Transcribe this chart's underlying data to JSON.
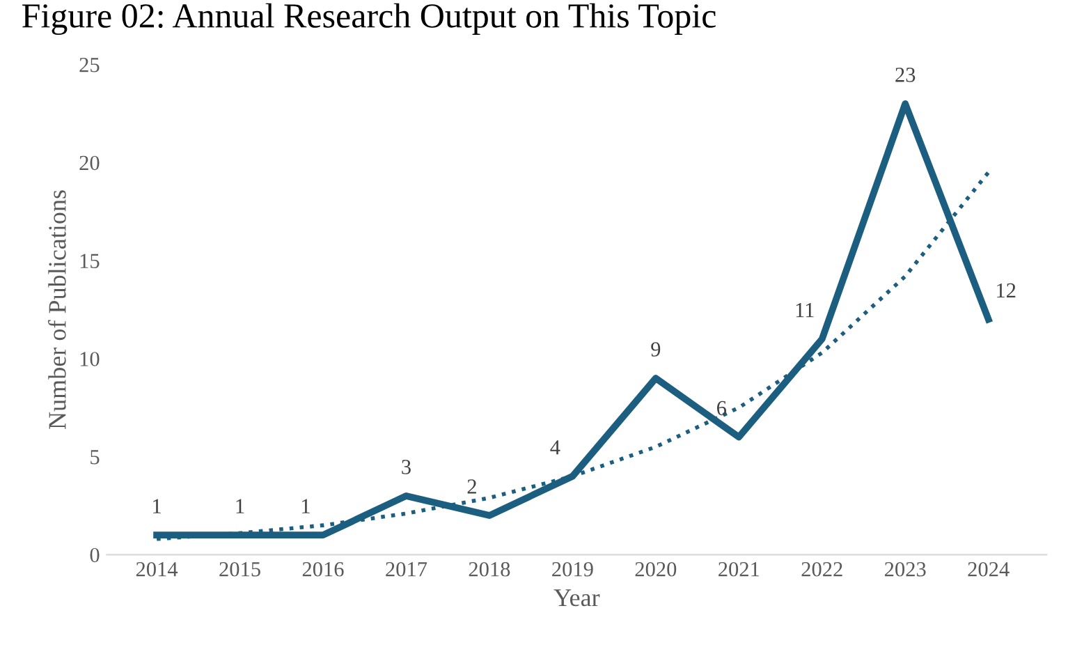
{
  "chart_data": {
    "type": "line",
    "title": "Figure 02: Annual Research Output on This Topic",
    "xlabel": "Year",
    "ylabel": "Number of Publications",
    "categories": [
      "2014",
      "2015",
      "2016",
      "2017",
      "2018",
      "2019",
      "2020",
      "2021",
      "2022",
      "2023",
      "2024"
    ],
    "series": [
      {
        "color": "#1b5e80",
        "values": [
          1,
          1,
          1,
          3,
          2,
          4,
          9,
          6,
          11,
          23,
          12
        ],
        "value_labels": [
          "1",
          "1",
          "1",
          "3",
          "2",
          "4",
          "9",
          "6",
          "11",
          "23",
          "12"
        ],
        "line_style": "solid"
      },
      {
        "color": "#1b5e80",
        "values": [
          0.8,
          1.1,
          1.5,
          2.1,
          2.9,
          4.0,
          5.5,
          7.5,
          10.3,
          14.2,
          19.5
        ],
        "line_style": "dotted"
      }
    ],
    "ylim": [
      0,
      25
    ],
    "yticks": [
      0,
      5,
      10,
      15,
      20,
      25
    ],
    "grid": false,
    "marker": "none"
  }
}
